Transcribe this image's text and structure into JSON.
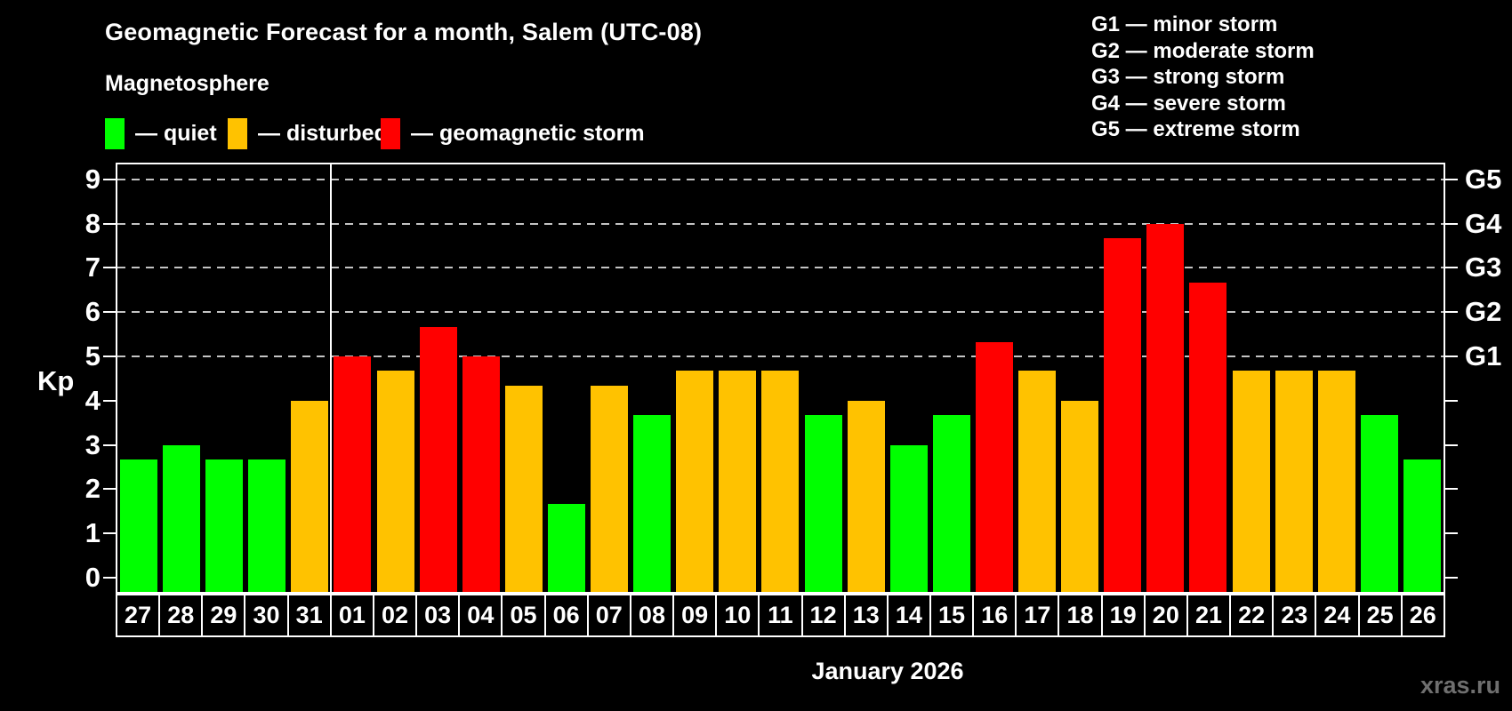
{
  "header": {
    "title": "Geomagnetic Forecast for a month, Salem (UTC-08)",
    "subtitle": "Magnetosphere"
  },
  "legend": {
    "items": [
      {
        "name": "quiet",
        "label": "— quiet",
        "color": "#00ff00"
      },
      {
        "name": "disturbed",
        "label": "— disturbed",
        "color": "#ffc200"
      },
      {
        "name": "storm",
        "label": "— geomagnetic storm",
        "color": "#ff0000"
      }
    ]
  },
  "storm_scale_legend": {
    "lines": [
      "G1 — minor storm",
      "G2 — moderate storm",
      "G3 — strong storm",
      "G4 — severe storm",
      "G5 — extreme storm"
    ]
  },
  "axes": {
    "y_label": "Kp",
    "y_ticks": [
      0,
      1,
      2,
      3,
      4,
      5,
      6,
      7,
      8,
      9
    ],
    "right_labels": [
      {
        "kp": 5,
        "label": "G1"
      },
      {
        "kp": 6,
        "label": "G2"
      },
      {
        "kp": 7,
        "label": "G3"
      },
      {
        "kp": 8,
        "label": "G4"
      },
      {
        "kp": 9,
        "label": "G5"
      }
    ],
    "x_label": "January 2026"
  },
  "watermark": "xras.ru",
  "chart_data": {
    "type": "bar",
    "title": "Geomagnetic Forecast for a month, Salem (UTC-08)",
    "xlabel": "January 2026",
    "ylabel": "Kp",
    "ylim": [
      0,
      9
    ],
    "grid_levels": [
      5,
      6,
      7,
      8,
      9
    ],
    "legend_position": "top",
    "month_separator_after_index": 4,
    "status_colors": {
      "quiet": "#00ff00",
      "disturbed": "#ffc200",
      "storm": "#ff0000"
    },
    "categories": [
      "27",
      "28",
      "29",
      "30",
      "31",
      "01",
      "02",
      "03",
      "04",
      "05",
      "06",
      "07",
      "08",
      "09",
      "10",
      "11",
      "12",
      "13",
      "14",
      "15",
      "16",
      "17",
      "18",
      "19",
      "20",
      "21",
      "22",
      "23",
      "24",
      "25",
      "26"
    ],
    "values": [
      2.67,
      3,
      2.67,
      2.67,
      4,
      5,
      4.67,
      5.67,
      5,
      4.33,
      1.67,
      4.33,
      3.67,
      4.67,
      4.67,
      4.67,
      3.67,
      4,
      3,
      3.67,
      5.33,
      4.67,
      4,
      7.67,
      8,
      6.67,
      4.67,
      4.67,
      4.67,
      3.67,
      2.67
    ],
    "status": [
      "quiet",
      "quiet",
      "quiet",
      "quiet",
      "disturbed",
      "storm",
      "disturbed",
      "storm",
      "storm",
      "disturbed",
      "quiet",
      "disturbed",
      "quiet",
      "disturbed",
      "disturbed",
      "disturbed",
      "quiet",
      "disturbed",
      "quiet",
      "quiet",
      "storm",
      "disturbed",
      "disturbed",
      "storm",
      "storm",
      "storm",
      "disturbed",
      "disturbed",
      "disturbed",
      "quiet",
      "quiet"
    ]
  }
}
